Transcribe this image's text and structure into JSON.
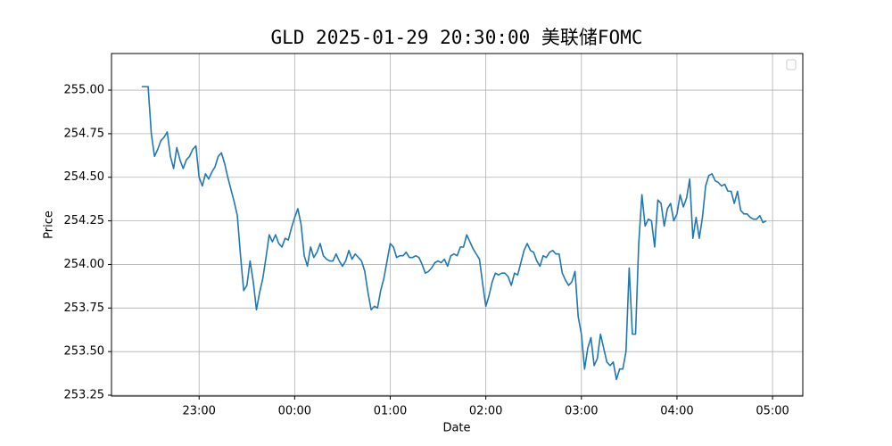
{
  "chart_data": {
    "type": "line",
    "title": "GLD 2025-01-29 20:30:00 美联储FOMC",
    "xlabel": "Date",
    "ylabel": "Price",
    "x": [
      "22:24",
      "22:26",
      "22:28",
      "22:30",
      "22:32",
      "22:34",
      "22:36",
      "22:38",
      "22:40",
      "22:42",
      "22:44",
      "22:46",
      "22:48",
      "22:50",
      "22:52",
      "22:54",
      "22:56",
      "22:58",
      "23:00",
      "23:02",
      "23:04",
      "23:06",
      "23:08",
      "23:10",
      "23:12",
      "23:14",
      "23:16",
      "23:18",
      "23:20",
      "23:22",
      "23:24",
      "23:26",
      "23:28",
      "23:30",
      "23:32",
      "23:34",
      "23:36",
      "23:38",
      "23:40",
      "23:42",
      "23:44",
      "23:46",
      "23:48",
      "23:50",
      "23:52",
      "23:54",
      "23:56",
      "23:58",
      "00:00",
      "00:02",
      "00:04",
      "00:06",
      "00:08",
      "00:10",
      "00:12",
      "00:14",
      "00:16",
      "00:18",
      "00:20",
      "00:22",
      "00:24",
      "00:26",
      "00:28",
      "00:30",
      "00:32",
      "00:34",
      "00:36",
      "00:38",
      "00:40",
      "00:42",
      "00:44",
      "00:46",
      "00:48",
      "00:50",
      "00:52",
      "00:54",
      "00:56",
      "00:58",
      "01:00",
      "01:02",
      "01:04",
      "01:06",
      "01:08",
      "01:10",
      "01:12",
      "01:14",
      "01:16",
      "01:18",
      "01:20",
      "01:22",
      "01:24",
      "01:26",
      "01:28",
      "01:30",
      "01:32",
      "01:34",
      "01:36",
      "01:38",
      "01:40",
      "01:42",
      "01:44",
      "01:46",
      "01:48",
      "01:50",
      "01:52",
      "01:54",
      "01:56",
      "01:58",
      "02:00",
      "02:02",
      "02:04",
      "02:06",
      "02:08",
      "02:10",
      "02:12",
      "02:14",
      "02:16",
      "02:18",
      "02:20",
      "02:22",
      "02:24",
      "02:26",
      "02:28",
      "02:30",
      "02:32",
      "02:34",
      "02:36",
      "02:38",
      "02:40",
      "02:42",
      "02:44",
      "02:46",
      "02:48",
      "02:50",
      "02:52",
      "02:54",
      "02:56",
      "02:58",
      "03:00",
      "03:02",
      "03:04",
      "03:06",
      "03:08",
      "03:10",
      "03:12",
      "03:14",
      "03:16",
      "03:18",
      "03:20",
      "03:22",
      "03:24",
      "03:26",
      "03:28",
      "03:30",
      "03:32",
      "03:34",
      "03:36",
      "03:38",
      "03:40",
      "03:42",
      "03:44",
      "03:46",
      "03:48",
      "03:50",
      "03:52",
      "03:54",
      "03:56",
      "03:58",
      "04:00",
      "04:02",
      "04:04",
      "04:06",
      "04:08",
      "04:10",
      "04:12",
      "04:14",
      "04:16",
      "04:18",
      "04:20",
      "04:22",
      "04:24",
      "04:26",
      "04:28",
      "04:30",
      "04:32",
      "04:34",
      "04:36",
      "04:38",
      "04:40",
      "04:42",
      "04:44",
      "04:46",
      "04:48",
      "04:50",
      "04:52",
      "04:54",
      "04:56"
    ],
    "series": [
      {
        "color": "#1f77b4",
        "values": [
          255.02,
          255.02,
          255.02,
          254.75,
          254.62,
          254.66,
          254.71,
          254.73,
          254.76,
          254.62,
          254.55,
          254.67,
          254.6,
          254.55,
          254.6,
          254.62,
          254.66,
          254.68,
          254.5,
          254.45,
          254.52,
          254.49,
          254.53,
          254.56,
          254.62,
          254.64,
          254.58,
          254.5,
          254.43,
          254.36,
          254.28,
          254.05,
          253.85,
          253.88,
          254.02,
          253.9,
          253.74,
          253.84,
          253.92,
          254.04,
          254.17,
          254.13,
          254.17,
          254.12,
          254.1,
          254.15,
          254.14,
          254.21,
          254.27,
          254.32,
          254.23,
          254.05,
          253.99,
          254.1,
          254.04,
          254.07,
          254.12,
          254.05,
          254.03,
          254.02,
          254.02,
          254.06,
          254.02,
          253.99,
          254.02,
          254.08,
          254.03,
          254.06,
          254.04,
          254.02,
          253.96,
          253.84,
          253.74,
          253.76,
          253.75,
          253.85,
          253.92,
          254.02,
          254.12,
          254.1,
          254.04,
          254.05,
          254.05,
          254.07,
          254.04,
          254.04,
          254.05,
          254.04,
          254.0,
          253.95,
          253.96,
          253.98,
          254.01,
          254.02,
          254.01,
          254.03,
          253.99,
          254.05,
          254.06,
          254.05,
          254.1,
          254.1,
          254.17,
          254.13,
          254.09,
          254.06,
          254.03,
          253.89,
          253.76,
          253.82,
          253.9,
          253.95,
          253.94,
          253.95,
          253.95,
          253.93,
          253.88,
          253.95,
          253.94,
          254.01,
          254.08,
          254.12,
          254.08,
          254.07,
          254.02,
          253.99,
          254.05,
          254.04,
          254.07,
          254.08,
          254.06,
          254.06,
          253.95,
          253.91,
          253.88,
          253.9,
          253.96,
          253.7,
          253.6,
          253.4,
          253.52,
          253.58,
          253.42,
          253.46,
          253.6,
          253.52,
          253.44,
          253.42,
          253.44,
          253.34,
          253.4,
          253.4,
          253.5,
          253.98,
          253.6,
          253.6,
          254.12,
          254.4,
          254.22,
          254.26,
          254.25,
          254.1,
          254.37,
          254.35,
          254.22,
          254.32,
          254.35,
          254.25,
          254.29,
          254.4,
          254.33,
          254.38,
          254.49,
          254.15,
          254.27,
          254.15,
          254.27,
          254.45,
          254.51,
          254.52,
          254.48,
          254.47,
          254.45,
          254.46,
          254.42,
          254.42,
          254.35,
          254.42,
          254.31,
          254.29,
          254.29,
          254.27,
          254.26,
          254.26,
          254.28,
          254.24,
          254.25
        ]
      }
    ],
    "xlim": [
      "22:05",
      "05:19"
    ],
    "xticks": [
      "23:00",
      "00:00",
      "01:00",
      "02:00",
      "03:00",
      "04:00",
      "05:00"
    ],
    "ylim": [
      253.245,
      255.21
    ],
    "yticks": [
      253.25,
      {
        "value": 253.5,
        "label": "253.50"
      },
      253.75,
      {
        "value": 254.0,
        "label": "254.00"
      },
      254.25,
      {
        "value": 254.5,
        "label": "254.50"
      },
      254.75,
      {
        "value": 255.0,
        "label": "255.00"
      }
    ],
    "grid": true
  }
}
